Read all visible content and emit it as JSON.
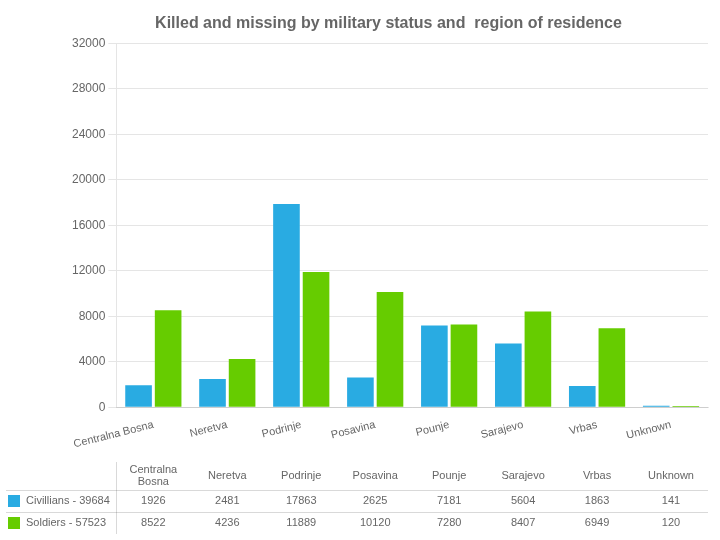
{
  "chart_data": {
    "type": "bar",
    "title": "Killed and missing by military status and  region of residence",
    "categories": [
      "Centralna Bosna",
      "Neretva",
      "Podrinje",
      "Posavina",
      "Pounje",
      "Sarajevo",
      "Vrbas",
      "Unknown"
    ],
    "series": [
      {
        "name": "Civillians - 39684",
        "color": "#29ABE2",
        "values": [
          1926,
          2481,
          17863,
          2625,
          7181,
          5604,
          1863,
          141
        ]
      },
      {
        "name": "Soldiers - 57523",
        "color": "#66CC00",
        "values": [
          8522,
          4236,
          11889,
          10120,
          7280,
          8407,
          6949,
          120
        ]
      }
    ],
    "ylim": [
      0,
      32000
    ],
    "yticks": [
      0,
      4000,
      8000,
      12000,
      16000,
      20000,
      24000,
      28000,
      32000
    ],
    "grid": true,
    "legend": "bottom"
  }
}
